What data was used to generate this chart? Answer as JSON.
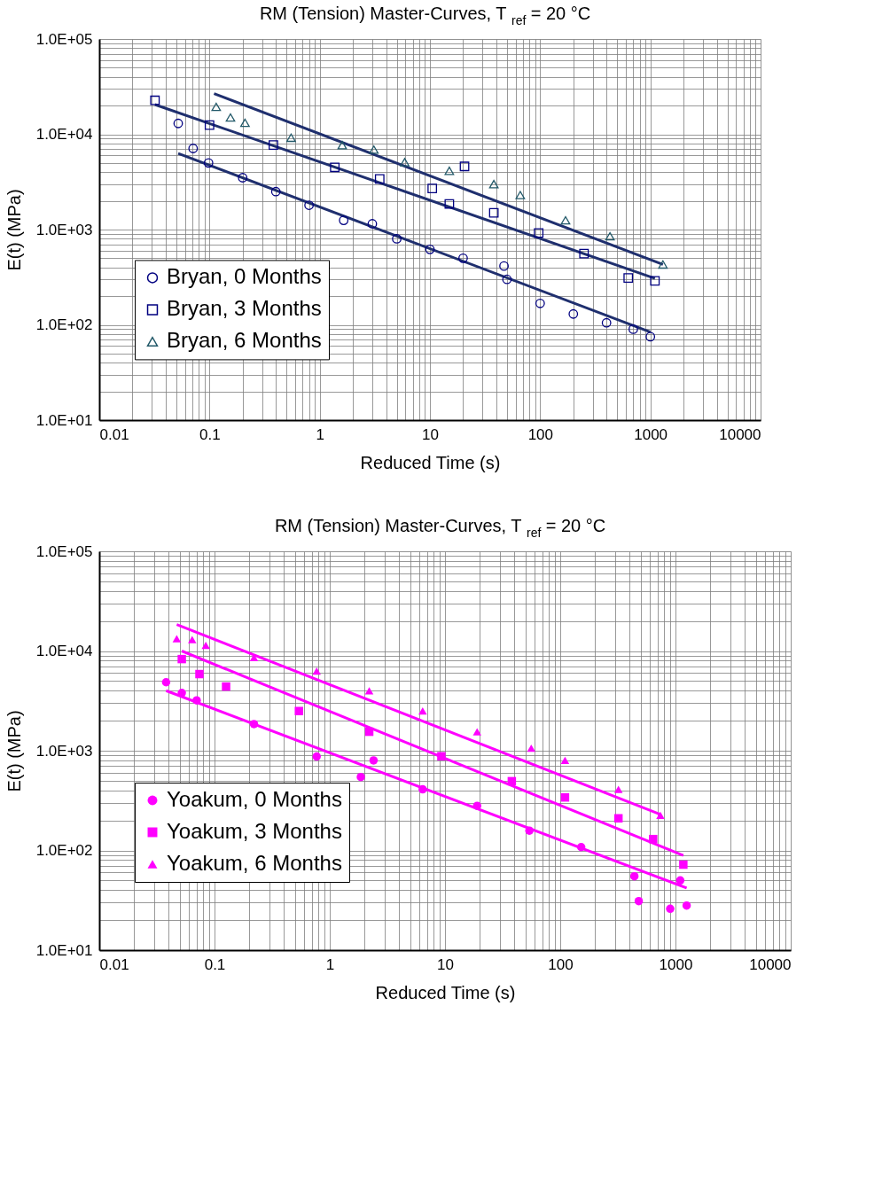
{
  "chart_data": [
    {
      "type": "scatter",
      "title": "RM (Tension) Master-Curves, T$_{ref}$ = 20 °C",
      "xlabel": "Reduced Time (s)",
      "ylabel": "E(t) (MPa)",
      "log": "xy",
      "grid": true,
      "legend": "left",
      "xlim": [
        0.01,
        10000
      ],
      "xticks": [
        0.01,
        0.1,
        1,
        10,
        100,
        1000,
        10000
      ],
      "ylim": [
        10,
        100000
      ],
      "yticks": [
        {
          "value": 10,
          "label": "1.0E+01"
        },
        {
          "value": 100,
          "label": "1.0E+02"
        },
        {
          "value": 1000,
          "label": "1.0E+03"
        },
        {
          "value": 10000,
          "label": "1.0E+04"
        },
        {
          "value": 100000,
          "label": "1.0E+05"
        }
      ],
      "series": [
        {
          "name": "Bryan, 0 Months",
          "marker": "circle",
          "color": "#000080",
          "x": [
            0.052,
            0.071,
            0.098,
            0.2,
            0.4,
            0.8,
            1.65,
            3,
            5,
            10,
            20,
            47,
            50,
            100,
            200,
            400,
            700,
            1000
          ],
          "values": [
            13000,
            7100,
            5000,
            3500,
            2500,
            1800,
            1250,
            1150,
            800,
            620,
            500,
            414,
            300,
            168,
            130,
            105,
            90,
            75
          ]
        },
        {
          "name": "Bryan, 3 Months",
          "marker": "square",
          "color": "#000080",
          "x": [
            0.032,
            0.1,
            0.38,
            1.37,
            3.5,
            10.5,
            20.6,
            15,
            38,
            97,
            250,
            630,
            1100
          ],
          "values": [
            22700,
            12500,
            7700,
            4500,
            3400,
            2700,
            4600,
            1860,
            1500,
            920,
            560,
            310,
            290
          ]
        },
        {
          "name": "Bryan, 6 Months",
          "marker": "triangle",
          "color": "#215868",
          "x": [
            0.115,
            0.155,
            0.21,
            0.55,
            1.6,
            3.1,
            5.9,
            15,
            38,
            66,
            170,
            430,
            1300
          ],
          "values": [
            19400,
            15000,
            13200,
            9200,
            7700,
            6900,
            5100,
            4140,
            3000,
            2300,
            1250,
            850,
            430
          ]
        },
        {
          "type": "line",
          "color": "#1f2f6e",
          "x": [
            0.052,
            1000
          ],
          "values": [
            6300,
            84
          ]
        },
        {
          "type": "line",
          "color": "#1f2f6e",
          "x": [
            0.032,
            1100
          ],
          "values": [
            20500,
            307
          ]
        },
        {
          "type": "line",
          "color": "#1f2f6e",
          "x": [
            0.11,
            1300
          ],
          "values": [
            26700,
            430
          ]
        }
      ]
    },
    {
      "type": "scatter",
      "title": "RM (Tension) Master-Curves, T$_{ref}$ = 20 °C",
      "xlabel": "Reduced Time (s)",
      "ylabel": "E(t) (MPa)",
      "log": "xy",
      "grid": true,
      "legend": "left",
      "xlim": [
        0.01,
        10000
      ],
      "xticks": [
        0.01,
        0.1,
        1,
        10,
        100,
        1000,
        10000
      ],
      "ylim": [
        10,
        100000
      ],
      "yticks": [
        {
          "value": 10,
          "label": "1.0E+01"
        },
        {
          "value": 100,
          "label": "1.0E+02"
        },
        {
          "value": 1000,
          "label": "1.0E+03"
        },
        {
          "value": 10000,
          "label": "1.0E+04"
        },
        {
          "value": 100000,
          "label": "1.0E+05"
        }
      ],
      "series": [
        {
          "name": "Yoakum, 0 Months",
          "marker": "circle",
          "color": "#ff00ff",
          "x": [
            0.038,
            0.052,
            0.07,
            0.22,
            0.77,
            1.86,
            2.4,
            6.4,
            19,
            54,
            152,
            440,
            480,
            900,
            1100,
            1250
          ],
          "values": [
            4860,
            3800,
            3200,
            1850,
            875,
            545,
            800,
            410,
            280,
            158,
            108,
            55,
            31,
            26,
            50,
            28
          ]
        },
        {
          "name": "Yoakum, 3 Months",
          "marker": "square",
          "color": "#ff00ff",
          "x": [
            0.052,
            0.074,
            0.126,
            0.54,
            2.2,
            9.3,
            38,
            110,
            320,
            640,
            1170
          ],
          "values": [
            8300,
            5870,
            4400,
            2500,
            1550,
            880,
            495,
            340,
            210,
            130,
            72
          ]
        },
        {
          "name": "Yoakum, 6 Months",
          "marker": "triangle",
          "color": "#ff00ff",
          "x": [
            0.047,
            0.064,
            0.084,
            0.22,
            0.77,
            2.2,
            6.4,
            19,
            56,
            110,
            320,
            740
          ],
          "values": [
            13300,
            13000,
            11400,
            8600,
            6300,
            4000,
            2500,
            1550,
            1060,
            800,
            410,
            225
          ]
        },
        {
          "type": "line",
          "color": "#ff00ff",
          "x": [
            0.038,
            1250
          ],
          "values": [
            4000,
            42
          ]
        },
        {
          "type": "line",
          "color": "#ff00ff",
          "x": [
            0.052,
            1170
          ],
          "values": [
            10000,
            89
          ]
        },
        {
          "type": "line",
          "color": "#ff00ff",
          "x": [
            0.047,
            740
          ],
          "values": [
            18400,
            230
          ]
        }
      ]
    }
  ]
}
